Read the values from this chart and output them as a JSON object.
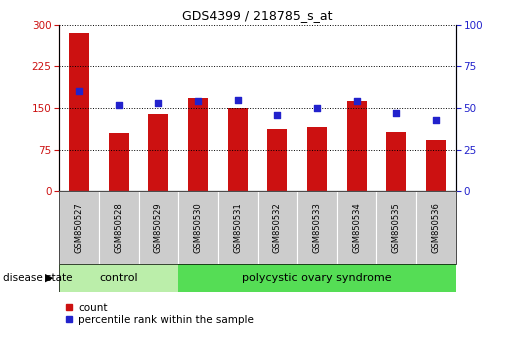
{
  "title": "GDS4399 / 218785_s_at",
  "samples": [
    "GSM850527",
    "GSM850528",
    "GSM850529",
    "GSM850530",
    "GSM850531",
    "GSM850532",
    "GSM850533",
    "GSM850534",
    "GSM850535",
    "GSM850536"
  ],
  "counts": [
    285,
    105,
    140,
    168,
    150,
    112,
    115,
    162,
    107,
    92
  ],
  "percentiles": [
    60,
    52,
    53,
    54,
    55,
    46,
    50,
    54,
    47,
    43
  ],
  "ylim_left": [
    0,
    300
  ],
  "ylim_right": [
    0,
    100
  ],
  "yticks_left": [
    0,
    75,
    150,
    225,
    300
  ],
  "yticks_right": [
    0,
    25,
    50,
    75,
    100
  ],
  "bar_color": "#cc1111",
  "dot_color": "#2222cc",
  "control_n": 3,
  "control_label": "control",
  "pcos_label": "polycystic ovary syndrome",
  "disease_state_label": "disease state",
  "legend_count": "count",
  "legend_percentile": "percentile rank within the sample",
  "control_color": "#bbeeaa",
  "pcos_color": "#55dd55",
  "xticklabel_bg": "#cccccc",
  "bar_width": 0.5
}
